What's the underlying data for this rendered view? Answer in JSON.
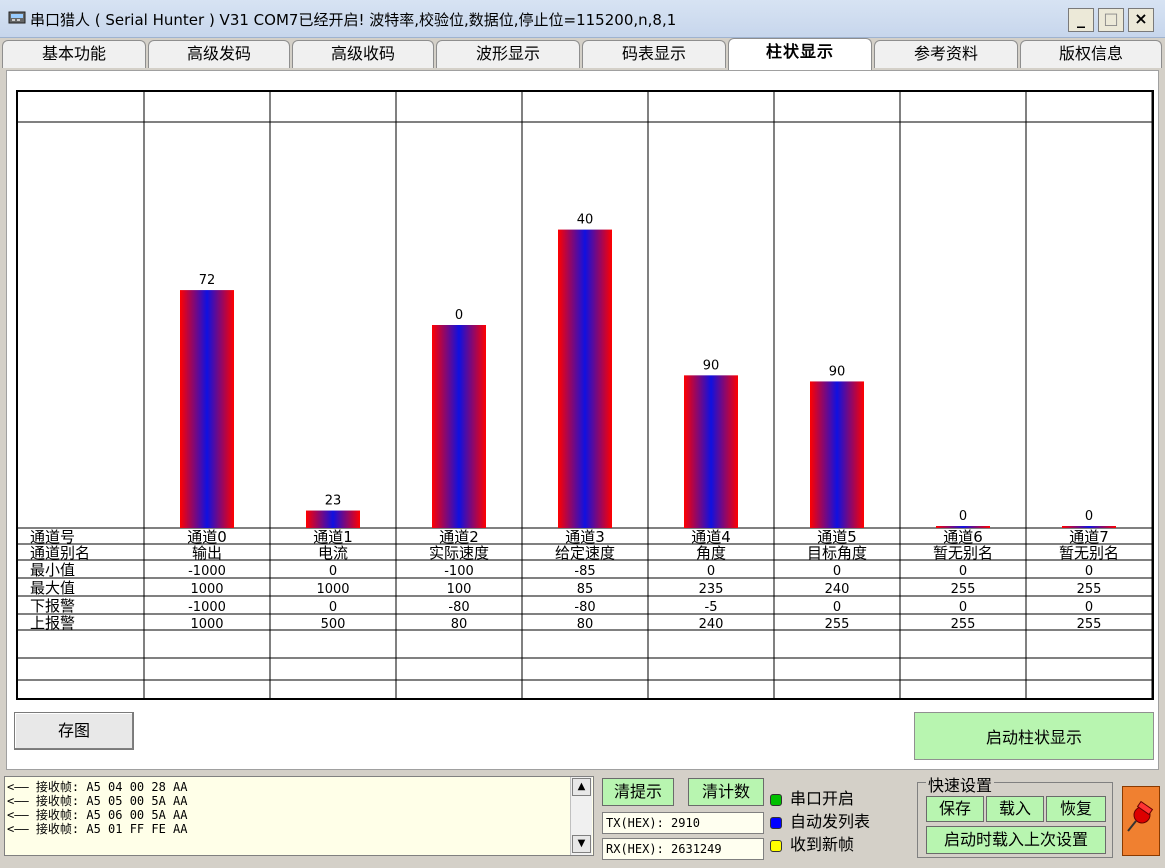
{
  "window": {
    "title": "串口猎人 ( Serial Hunter ) V31    COM7已经开启!  波特率,校验位,数据位,停止位=115200,n,8,1",
    "minimize": "_",
    "maximize": "□",
    "close": "×"
  },
  "tabs": [
    {
      "label": "基本功能"
    },
    {
      "label": "高级发码"
    },
    {
      "label": "高级收码"
    },
    {
      "label": "波形显示"
    },
    {
      "label": "码表显示"
    },
    {
      "label": "柱状显示",
      "active": true
    },
    {
      "label": "参考资料"
    },
    {
      "label": "版权信息"
    }
  ],
  "chart_data": {
    "type": "bar",
    "categories": [
      "通道0",
      "通道1",
      "通道2",
      "通道3",
      "通道4",
      "通道5",
      "通道6",
      "通道7"
    ],
    "values": [
      72,
      23,
      0,
      40,
      90,
      90,
      0,
      0
    ],
    "fill_fraction": [
      0.586,
      0.043,
      0.5,
      0.735,
      0.376,
      0.361,
      0.0,
      0.0
    ],
    "bar_colors": [
      "#e00000",
      "#0000e0"
    ],
    "table": {
      "row_labels": [
        "通道号",
        "通道别名",
        "最小值",
        "最大值",
        "下报警",
        "上报警"
      ],
      "alias": [
        "输出",
        "电流",
        "实际速度",
        "给定速度",
        "角度",
        "目标角度",
        "暂无别名",
        "暂无别名"
      ],
      "min": [
        "-1000",
        "0",
        "-100",
        "-85",
        "0",
        "0",
        "0",
        "0"
      ],
      "max": [
        "1000",
        "1000",
        "100",
        "85",
        "235",
        "240",
        "255",
        "255"
      ],
      "low_alarm": [
        "-1000",
        "0",
        "-80",
        "-80",
        "-5",
        "0",
        "0",
        "0"
      ],
      "high_alarm": [
        "1000",
        "500",
        "80",
        "80",
        "240",
        "255",
        "255",
        "255"
      ]
    }
  },
  "buttons": {
    "save_image": "存图",
    "start_bar": "启动柱状显示",
    "clear_tips": "清提示",
    "clear_count": "清计数"
  },
  "log_lines": [
    "<——  接收帧: A5 04 00 28 AA",
    "<——  接收帧: A5 05 00 5A AA",
    "<——  接收帧: A5 06 00 5A AA",
    "<——  接收帧: A5 01 FF FE AA"
  ],
  "counters": {
    "tx": "TX(HEX): 2910",
    "rx": "RX(HEX): 2631249"
  },
  "status_legend": [
    {
      "label": "串口开启",
      "color": "#00c000"
    },
    {
      "label": "自动发列表",
      "color": "#0000ff"
    },
    {
      "label": "收到新帧",
      "color": "#ffff00"
    }
  ],
  "quick_settings": {
    "title": "快速设置",
    "save": "保存",
    "load": "载入",
    "restore": "恢复",
    "load_last": "启动时载入上次设置"
  },
  "icons": {
    "app": "serial-port-icon",
    "pin": "pushpin-icon"
  }
}
